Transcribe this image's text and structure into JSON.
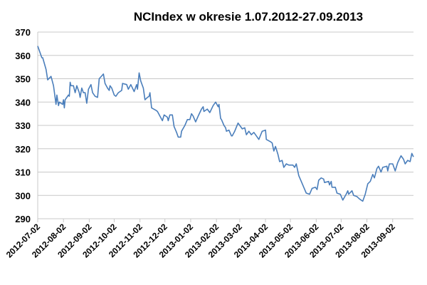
{
  "chart_data": {
    "type": "line",
    "title": "NCIndex w okresie 1.07.2012-27.09.2013",
    "xlabel": "",
    "ylabel": "",
    "ylim": [
      290,
      370
    ],
    "yticks": [
      290,
      300,
      310,
      320,
      330,
      340,
      350,
      360,
      370
    ],
    "grid": "horizontal",
    "legend": "none",
    "line_color": "#4a7ebb",
    "x_unit": "days since 2012-07-02",
    "x_range_days": [
      0,
      452
    ],
    "xtick_labels": [
      "2012-07-02",
      "2012-08-02",
      "2012-09-02",
      "2012-10-02",
      "2012-11-02",
      "2012-12-02",
      "2013-01-02",
      "2013-02-02",
      "2013-03-02",
      "2013-04-02",
      "2013-05-02",
      "2013-06-02",
      "2013-07-02",
      "2013-08-02",
      "2013-09-02"
    ],
    "xtick_days": [
      0,
      31,
      62,
      92,
      123,
      153,
      184,
      215,
      243,
      274,
      304,
      335,
      365,
      396,
      427
    ],
    "series": [
      {
        "name": "NCIndex",
        "x": [
          0,
          5,
          6,
          10,
          12,
          16,
          19,
          22,
          23,
          25,
          26,
          30,
          31,
          32,
          33,
          37,
          38,
          39,
          40,
          43,
          45,
          47,
          50,
          51,
          53,
          55,
          57,
          59,
          61,
          64,
          66,
          69,
          72,
          74,
          79,
          81,
          84,
          86,
          87,
          89,
          92,
          94,
          97,
          101,
          102,
          107,
          109,
          112,
          116,
          119,
          120,
          122,
          124,
          127,
          129,
          132,
          134,
          135,
          137,
          142,
          144,
          147,
          150,
          152,
          156,
          157,
          159,
          162,
          164,
          167,
          169,
          172,
          173,
          177,
          180,
          183,
          185,
          187,
          190,
          193,
          197,
          199,
          200,
          204,
          207,
          211,
          214,
          217,
          218,
          220,
          221,
          224,
          226,
          227,
          230,
          233,
          234,
          237,
          241,
          246,
          249,
          251,
          254,
          257,
          260,
          263,
          266,
          270,
          274,
          275,
          280,
          282,
          284,
          286,
          289,
          291,
          294,
          296,
          299,
          302,
          307,
          309,
          311,
          314,
          317,
          320,
          323,
          327,
          330,
          334,
          336,
          338,
          341,
          344,
          345,
          350,
          351,
          353,
          354,
          358,
          360,
          364,
          367,
          371,
          373,
          374,
          378,
          380,
          384,
          387,
          391,
          394,
          397,
          400,
          403,
          405,
          408,
          410,
          413,
          415,
          420,
          421,
          423,
          427,
          430,
          433,
          435,
          437,
          440,
          442,
          445,
          448,
          450,
          452
        ],
        "values": [
          364,
          359,
          359,
          354,
          349.5,
          351,
          347,
          339,
          343,
          338.5,
          340,
          339,
          341,
          337.5,
          341,
          343,
          342.5,
          348.5,
          347,
          347,
          344,
          347,
          344,
          342,
          346,
          344,
          344,
          339.5,
          345.5,
          347.5,
          344,
          342.5,
          342,
          350,
          352,
          348,
          346,
          345,
          347,
          346,
          343,
          342.5,
          344,
          345,
          348,
          347.5,
          345.5,
          347.5,
          344.5,
          347.5,
          345.5,
          352.5,
          349,
          346,
          341,
          342,
          342.5,
          344,
          337.5,
          336.5,
          336,
          334,
          332,
          334.5,
          333.5,
          332,
          334.5,
          334.5,
          329.5,
          327,
          325,
          325,
          327.5,
          330,
          332.5,
          332.5,
          335,
          334,
          331.5,
          334,
          337,
          338,
          336,
          337,
          335.5,
          338.5,
          340,
          338,
          339,
          333,
          332.5,
          330,
          329,
          327.5,
          328,
          325.5,
          325.5,
          327.5,
          331,
          328.5,
          329,
          326,
          327.5,
          326,
          327,
          325.5,
          324,
          327.5,
          328,
          324,
          323,
          322.5,
          319,
          321,
          317.5,
          314.5,
          315,
          312,
          313.5,
          313,
          313,
          312,
          313.5,
          308.5,
          306,
          303.5,
          301,
          300.5,
          303,
          303.5,
          302.5,
          306.5,
          307.5,
          307,
          305.5,
          306,
          304.5,
          306,
          303.5,
          303.5,
          301,
          300.5,
          298,
          300.5,
          302,
          300.5,
          302,
          300,
          299.5,
          298.5,
          297.5,
          300.5,
          305,
          306,
          309,
          307.5,
          311.5,
          312.5,
          310,
          312,
          312.5,
          310.5,
          313.5,
          313.5,
          310.5,
          314,
          315.5,
          317,
          315.5,
          313.5,
          315,
          314.5,
          318,
          316.5
        ]
      }
    ]
  }
}
